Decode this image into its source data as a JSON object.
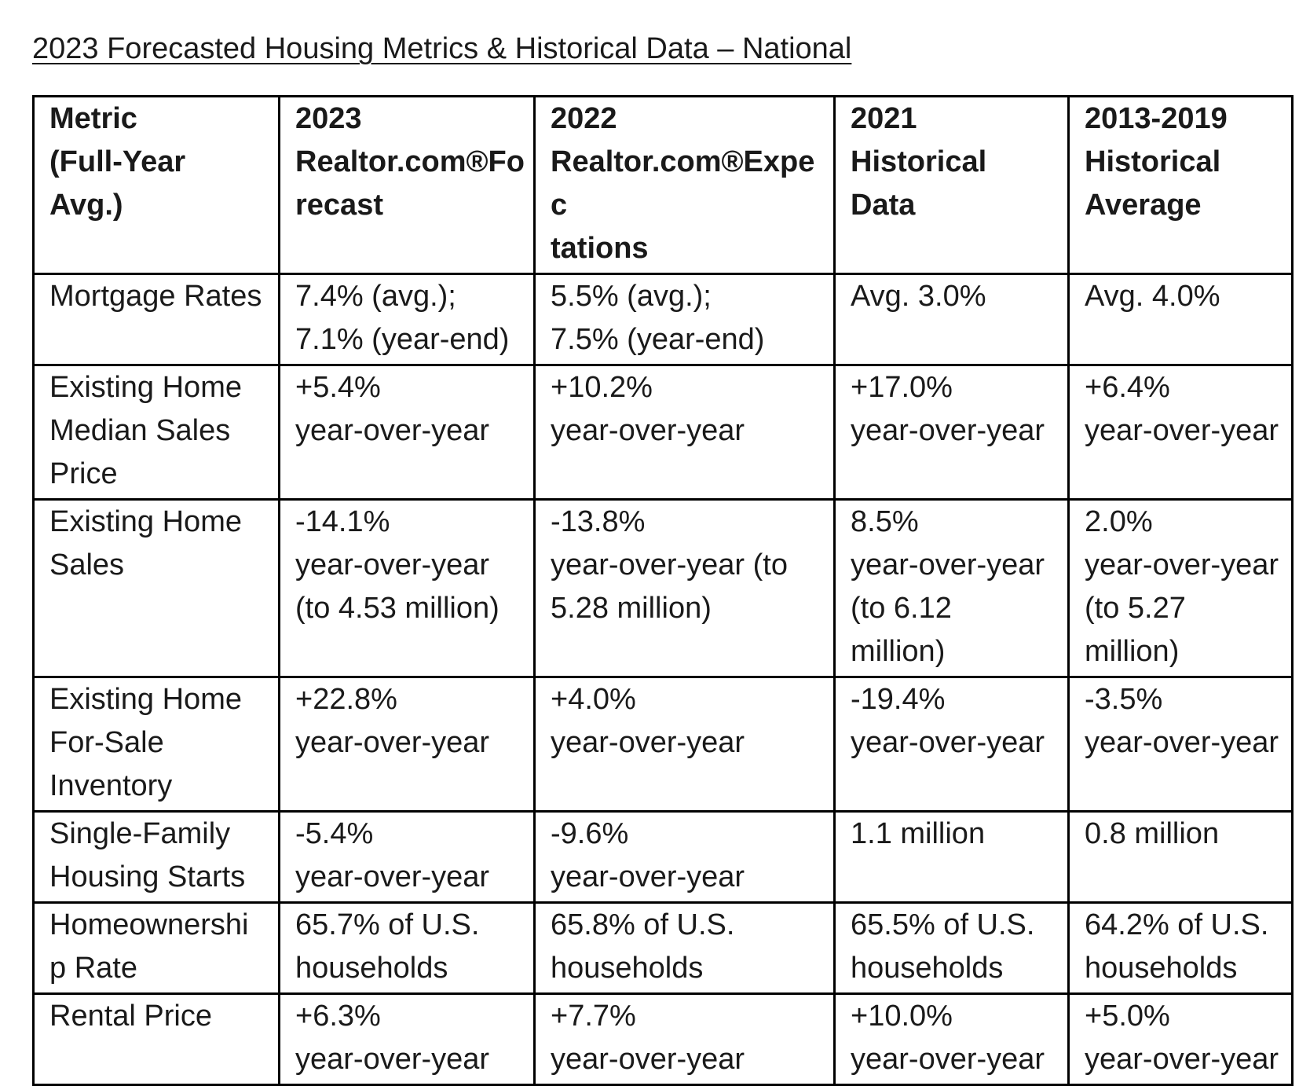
{
  "title": "2023 Forecasted Housing Metrics & Historical Data – National",
  "table": {
    "headers": [
      "Metric\n(Full-Year\nAvg.)",
      "2023\nRealtor.com®Fo\nrecast",
      "2022\nRealtor.com®Expec\ntations",
      "2021\nHistorical\nData",
      "2013-2019\nHistorical\nAverage"
    ],
    "rows": [
      {
        "metric": "Mortgage Rates",
        "forecast_2023": "7.4% (avg.);\n7.1% (year-end)",
        "expectations_2022": "5.5% (avg.);\n7.5% (year-end)",
        "historical_2021": "Avg. 3.0%",
        "average_2013_2019": "Avg. 4.0%"
      },
      {
        "metric": "Existing Home\nMedian Sales\nPrice",
        "forecast_2023": "+5.4%\nyear-over-year",
        "expectations_2022": "+10.2%\nyear-over-year",
        "historical_2021": "+17.0%\nyear-over-year",
        "average_2013_2019": "+6.4%\nyear-over-year"
      },
      {
        "metric": "Existing Home\nSales",
        "forecast_2023": "-14.1%\nyear-over-year\n(to 4.53 million)",
        "expectations_2022": "-13.8%\nyear-over-year (to\n5.28 million)",
        "historical_2021": "8.5%\nyear-over-year\n(to 6.12\nmillion)",
        "average_2013_2019": "2.0%\nyear-over-year\n(to 5.27\nmillion)"
      },
      {
        "metric": "Existing Home\nFor-Sale\nInventory",
        "forecast_2023": "+22.8%\nyear-over-year",
        "expectations_2022": "+4.0%\nyear-over-year",
        "historical_2021": "-19.4%\nyear-over-year",
        "average_2013_2019": "-3.5%\nyear-over-year"
      },
      {
        "metric": "Single-Family\nHousing Starts",
        "forecast_2023": "-5.4%\nyear-over-year",
        "expectations_2022": "-9.6%\nyear-over-year",
        "historical_2021": "1.1 million",
        "average_2013_2019": "0.8 million"
      },
      {
        "metric": "Homeownershi\np Rate",
        "forecast_2023": "65.7% of U.S.\nhouseholds",
        "expectations_2022": "65.8% of U.S.\nhouseholds",
        "historical_2021": "65.5% of U.S.\nhouseholds",
        "average_2013_2019": "64.2% of U.S.\nhouseholds"
      },
      {
        "metric": "Rental Price",
        "forecast_2023": "+6.3%\nyear-over-year",
        "expectations_2022": "+7.7%\nyear-over-year",
        "historical_2021": "+10.0%\nyear-over-year",
        "average_2013_2019": "+5.0%\nyear-over-year"
      }
    ]
  }
}
